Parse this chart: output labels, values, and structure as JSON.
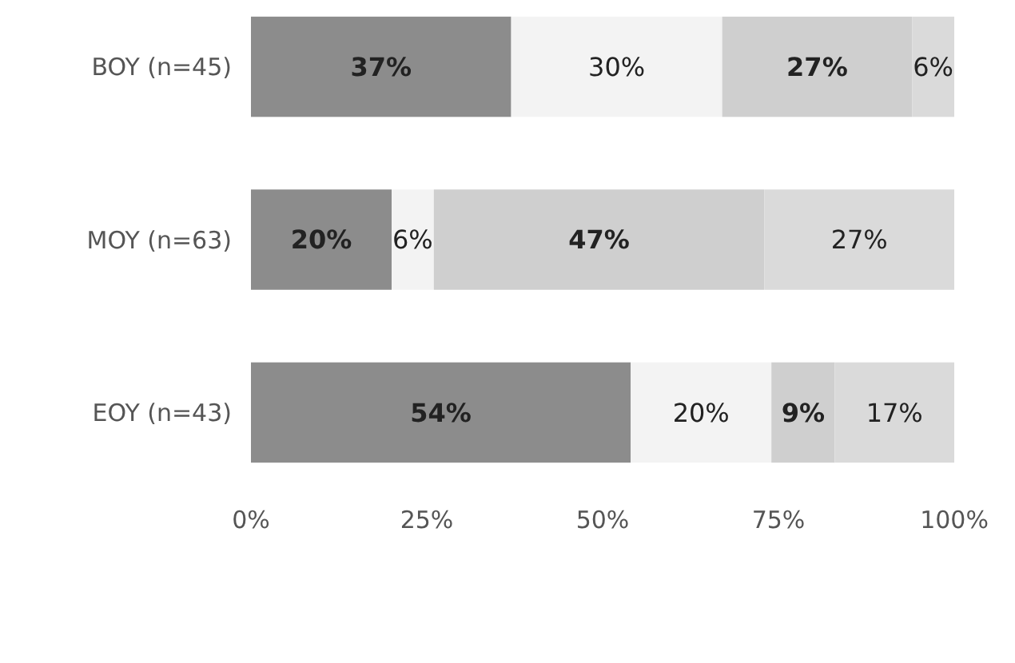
{
  "chart_data": {
    "type": "bar",
    "orientation": "horizontal",
    "stacked": true,
    "categories": [
      "BOY (n=45)",
      "MOY (n=63)",
      "EOY (n=43)"
    ],
    "series": [
      {
        "color": "#8c8c8c",
        "values": [
          37,
          20,
          54
        ],
        "value_labels": [
          "37%",
          "20%",
          "54%"
        ]
      },
      {
        "color": "#f3f3f3",
        "values": [
          30,
          6,
          20
        ],
        "value_labels": [
          "30%",
          "6%",
          "20%"
        ]
      },
      {
        "color": "#cfcfcf",
        "values": [
          27,
          47,
          9
        ],
        "value_labels": [
          "27%",
          "47%",
          "9%"
        ]
      },
      {
        "color": "#dadada",
        "values": [
          6,
          27,
          17
        ],
        "value_labels": [
          "6%",
          "27%",
          "17%"
        ]
      }
    ],
    "xlim": [
      0,
      100
    ],
    "xticks": [
      {
        "value": 0,
        "label": "0%"
      },
      {
        "value": 25,
        "label": "25%"
      },
      {
        "value": 50,
        "label": "50%"
      },
      {
        "value": 75,
        "label": "75%"
      },
      {
        "value": 100,
        "label": "100%"
      }
    ],
    "grid": false
  }
}
